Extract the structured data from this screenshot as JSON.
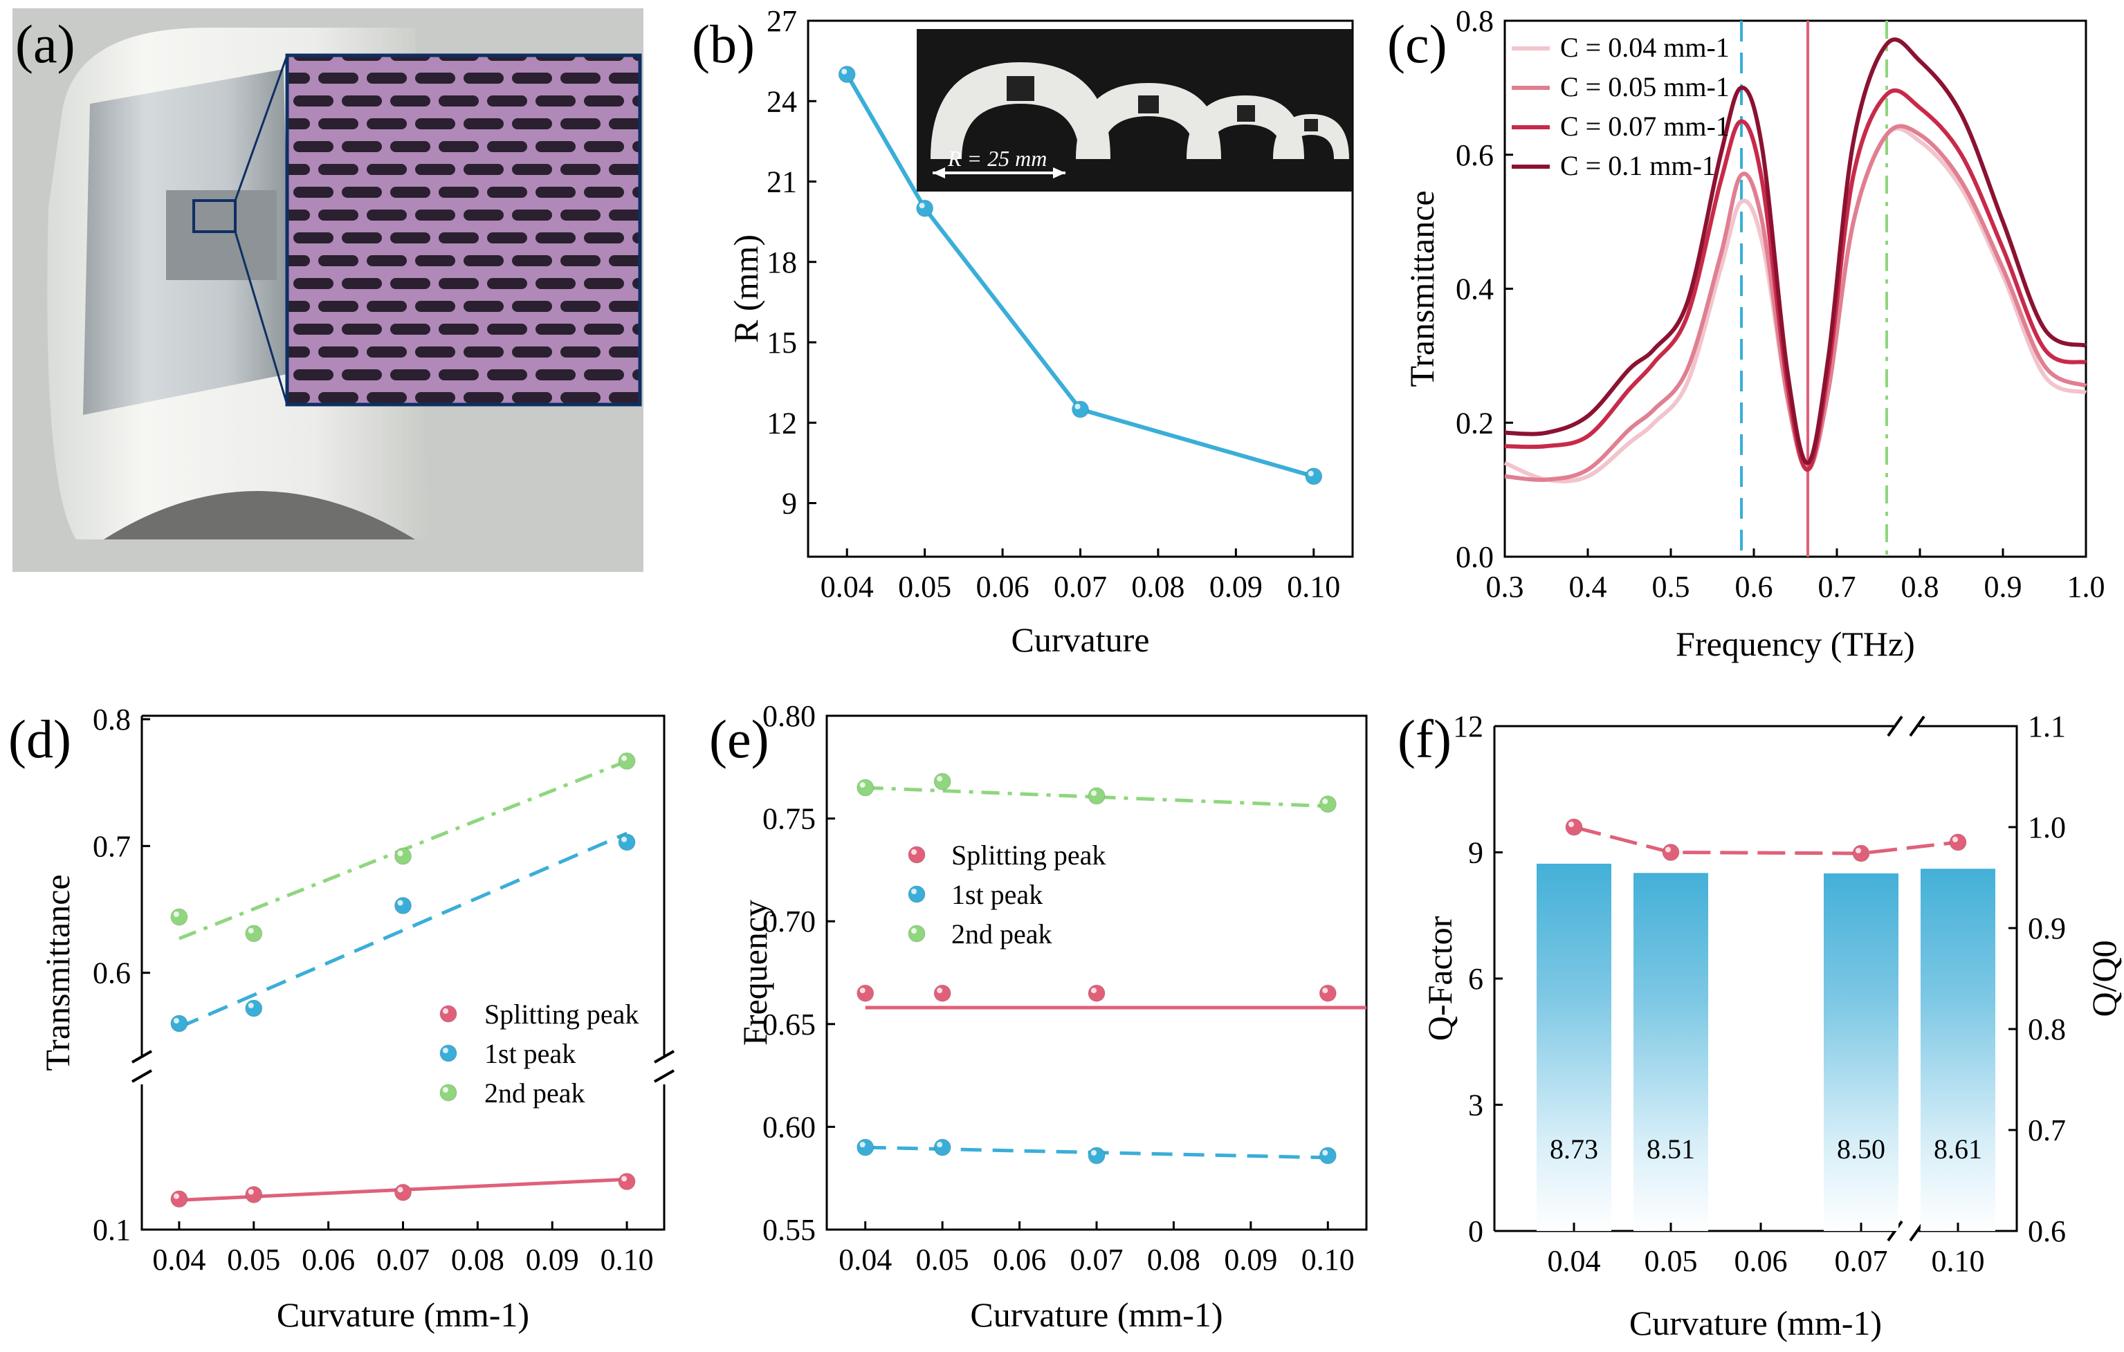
{
  "figure": {
    "panel_labels": [
      "(a)",
      "(b)",
      "(c)",
      "(d)",
      "(e)",
      "(f)"
    ],
    "photo_b_label": "R = 25 mm",
    "colors": {
      "blue": "#3aaed8",
      "pink": "#e0607a",
      "green": "#8fd67e",
      "c004": "#f2c4cc",
      "c005": "#e07f91",
      "c007": "#c82a4a",
      "c01": "#8b1230",
      "bar_top": "#44b0d8"
    }
  },
  "chart_data": [
    {
      "panel": "b",
      "type": "line",
      "xlabel": "Curvature",
      "ylabel": "R (mm)",
      "x": [
        0.04,
        0.05,
        0.07,
        0.1
      ],
      "y": [
        25,
        20,
        12.5,
        10
      ],
      "xlim": [
        0.035,
        0.105
      ],
      "ylim": [
        7,
        27
      ],
      "xticks": [
        "0.04",
        "0.05",
        "0.06",
        "0.07",
        "0.08",
        "0.09",
        "0.10"
      ],
      "yticks": [
        "9",
        "12",
        "15",
        "18",
        "21",
        "24",
        "27"
      ],
      "grid": false
    },
    {
      "panel": "c",
      "type": "line",
      "xlabel": "Frequency (THz)",
      "ylabel": "Transmittance",
      "xlim": [
        0.3,
        1.0
      ],
      "ylim": [
        0.0,
        0.8
      ],
      "xticks": [
        "0.3",
        "0.4",
        "0.5",
        "0.6",
        "0.7",
        "0.8",
        "0.9",
        "1.0"
      ],
      "yticks": [
        "0.0",
        "0.2",
        "0.4",
        "0.6",
        "0.8"
      ],
      "vlines": [
        {
          "x": 0.585,
          "style": "dashed",
          "color": "blue"
        },
        {
          "x": 0.665,
          "style": "solid",
          "color": "pink"
        },
        {
          "x": 0.76,
          "style": "dashdot",
          "color": "green"
        }
      ],
      "series": [
        {
          "name": "C = 0.04 mm-1",
          "color": "c004",
          "x": [
            0.3,
            0.35,
            0.4,
            0.45,
            0.48,
            0.52,
            0.56,
            0.585,
            0.61,
            0.64,
            0.665,
            0.69,
            0.72,
            0.76,
            0.8,
            0.85,
            0.9,
            0.95,
            1.0
          ],
          "y": [
            0.14,
            0.115,
            0.12,
            0.17,
            0.2,
            0.26,
            0.43,
            0.53,
            0.47,
            0.24,
            0.13,
            0.25,
            0.5,
            0.63,
            0.62,
            0.55,
            0.42,
            0.27,
            0.245
          ]
        },
        {
          "name": "C = 0.05 mm-1",
          "color": "c005",
          "x": [
            0.3,
            0.35,
            0.4,
            0.45,
            0.48,
            0.52,
            0.56,
            0.585,
            0.61,
            0.64,
            0.665,
            0.69,
            0.72,
            0.76,
            0.8,
            0.85,
            0.9,
            0.95,
            1.0
          ],
          "y": [
            0.12,
            0.115,
            0.13,
            0.19,
            0.22,
            0.28,
            0.45,
            0.57,
            0.5,
            0.24,
            0.13,
            0.25,
            0.5,
            0.63,
            0.63,
            0.56,
            0.43,
            0.285,
            0.255
          ]
        },
        {
          "name": "C = 0.07 mm-1",
          "color": "c007",
          "x": [
            0.3,
            0.35,
            0.4,
            0.45,
            0.48,
            0.52,
            0.56,
            0.585,
            0.61,
            0.64,
            0.665,
            0.69,
            0.72,
            0.76,
            0.8,
            0.85,
            0.9,
            0.95,
            1.0
          ],
          "y": [
            0.165,
            0.165,
            0.18,
            0.25,
            0.29,
            0.36,
            0.56,
            0.65,
            0.56,
            0.26,
            0.13,
            0.28,
            0.57,
            0.69,
            0.67,
            0.6,
            0.46,
            0.31,
            0.29
          ]
        },
        {
          "name": "C = 0.1 mm-1",
          "color": "c01",
          "x": [
            0.3,
            0.35,
            0.4,
            0.45,
            0.48,
            0.52,
            0.56,
            0.585,
            0.61,
            0.64,
            0.665,
            0.69,
            0.72,
            0.76,
            0.8,
            0.85,
            0.9,
            0.95,
            1.0
          ],
          "y": [
            0.185,
            0.185,
            0.21,
            0.28,
            0.31,
            0.38,
            0.6,
            0.7,
            0.61,
            0.28,
            0.14,
            0.3,
            0.62,
            0.765,
            0.74,
            0.66,
            0.5,
            0.34,
            0.315
          ]
        }
      ],
      "legend": {
        "placement": "top-left",
        "entries": [
          "C = 0.04 mm-1",
          "C = 0.05 mm-1",
          "C = 0.07 mm-1",
          "C = 0.1 mm-1"
        ]
      },
      "grid": false
    },
    {
      "panel": "d",
      "type": "scatter",
      "xlabel": "Curvature (mm-1)",
      "ylabel": "Transmittance",
      "xlim": [
        0.035,
        0.105
      ],
      "axis_break": true,
      "upper_ylim": [
        0.5,
        0.8
      ],
      "lower_ylim": [
        0.1,
        0.2
      ],
      "xticks": [
        "0.04",
        "0.05",
        "0.06",
        "0.07",
        "0.08",
        "0.09",
        "0.10"
      ],
      "yticks": [
        "0.1",
        "0.6",
        "0.7",
        "0.8"
      ],
      "series": [
        {
          "name": "Splitting peak",
          "color": "pink",
          "x": [
            0.04,
            0.05,
            0.07,
            0.1
          ],
          "y": [
            0.128,
            0.132,
            0.134,
            0.144
          ],
          "fit": [
            0.127,
            0.146
          ],
          "fit_style": "solid"
        },
        {
          "name": "1st peak",
          "color": "blue",
          "x": [
            0.04,
            0.05,
            0.07,
            0.1
          ],
          "y": [
            0.56,
            0.572,
            0.653,
            0.703
          ],
          "fit": [
            0.557,
            0.71
          ],
          "fit_style": "dashed"
        },
        {
          "name": "2nd peak",
          "color": "green",
          "x": [
            0.04,
            0.05,
            0.07,
            0.1
          ],
          "y": [
            0.644,
            0.631,
            0.692,
            0.767
          ],
          "fit": [
            0.627,
            0.767
          ],
          "fit_style": "dashdot"
        }
      ],
      "legend": {
        "placement": "center-right",
        "entries": [
          "Splitting peak",
          "1st peak",
          "2nd peak"
        ]
      },
      "grid": false
    },
    {
      "panel": "e",
      "type": "scatter",
      "xlabel": "Curvature (mm-1)",
      "ylabel": "Frequency",
      "xlim": [
        0.035,
        0.105
      ],
      "ylim": [
        0.55,
        0.8
      ],
      "xticks": [
        "0.04",
        "0.05",
        "0.06",
        "0.07",
        "0.08",
        "0.09",
        "0.10"
      ],
      "yticks": [
        "0.55",
        "0.60",
        "0.65",
        "0.70",
        "0.75",
        "0.80"
      ],
      "series": [
        {
          "name": "Splitting peak",
          "color": "pink",
          "x": [
            0.04,
            0.05,
            0.07,
            0.1
          ],
          "y": [
            0.665,
            0.665,
            0.665,
            0.665
          ],
          "fit": [
            0.658,
            0.658
          ],
          "fit_style": "solid"
        },
        {
          "name": "1st peak",
          "color": "blue",
          "x": [
            0.04,
            0.05,
            0.07,
            0.1
          ],
          "y": [
            0.59,
            0.59,
            0.586,
            0.586
          ],
          "fit": [
            0.59,
            0.585
          ],
          "fit_style": "dashed"
        },
        {
          "name": "2nd peak",
          "color": "green",
          "x": [
            0.04,
            0.05,
            0.07,
            0.1
          ],
          "y": [
            0.765,
            0.768,
            0.761,
            0.757
          ],
          "fit": [
            0.765,
            0.756
          ],
          "fit_style": "dashdot"
        }
      ],
      "legend": {
        "placement": "center-left",
        "entries": [
          "Splitting peak",
          "1st peak",
          "2nd peak"
        ]
      },
      "grid": false
    },
    {
      "panel": "f",
      "type": "bar",
      "xlabel": "Curvature (mm-1)",
      "ylabel": "Q-Factor",
      "ylabel_right": "Q/Q0",
      "categories": [
        "0.04",
        "0.05",
        "0.07",
        "0.10"
      ],
      "xticks": [
        "0.04",
        "0.05",
        "0.06",
        "0.07",
        "0.10"
      ],
      "values": [
        8.73,
        8.51,
        8.5,
        8.61
      ],
      "value_labels": [
        "8.73",
        "8.51",
        "8.50",
        "8.61"
      ],
      "ylim": [
        0,
        12
      ],
      "yticks": [
        "0",
        "3",
        "6",
        "9",
        "12"
      ],
      "right_ylim": [
        0.6,
        1.1
      ],
      "right_yticks": [
        "0.6",
        "0.7",
        "0.8",
        "0.9",
        "1.0",
        "1.1"
      ],
      "ratio": [
        1.0,
        0.975,
        0.974,
        0.985
      ],
      "axis_break": true,
      "grid": false
    }
  ]
}
